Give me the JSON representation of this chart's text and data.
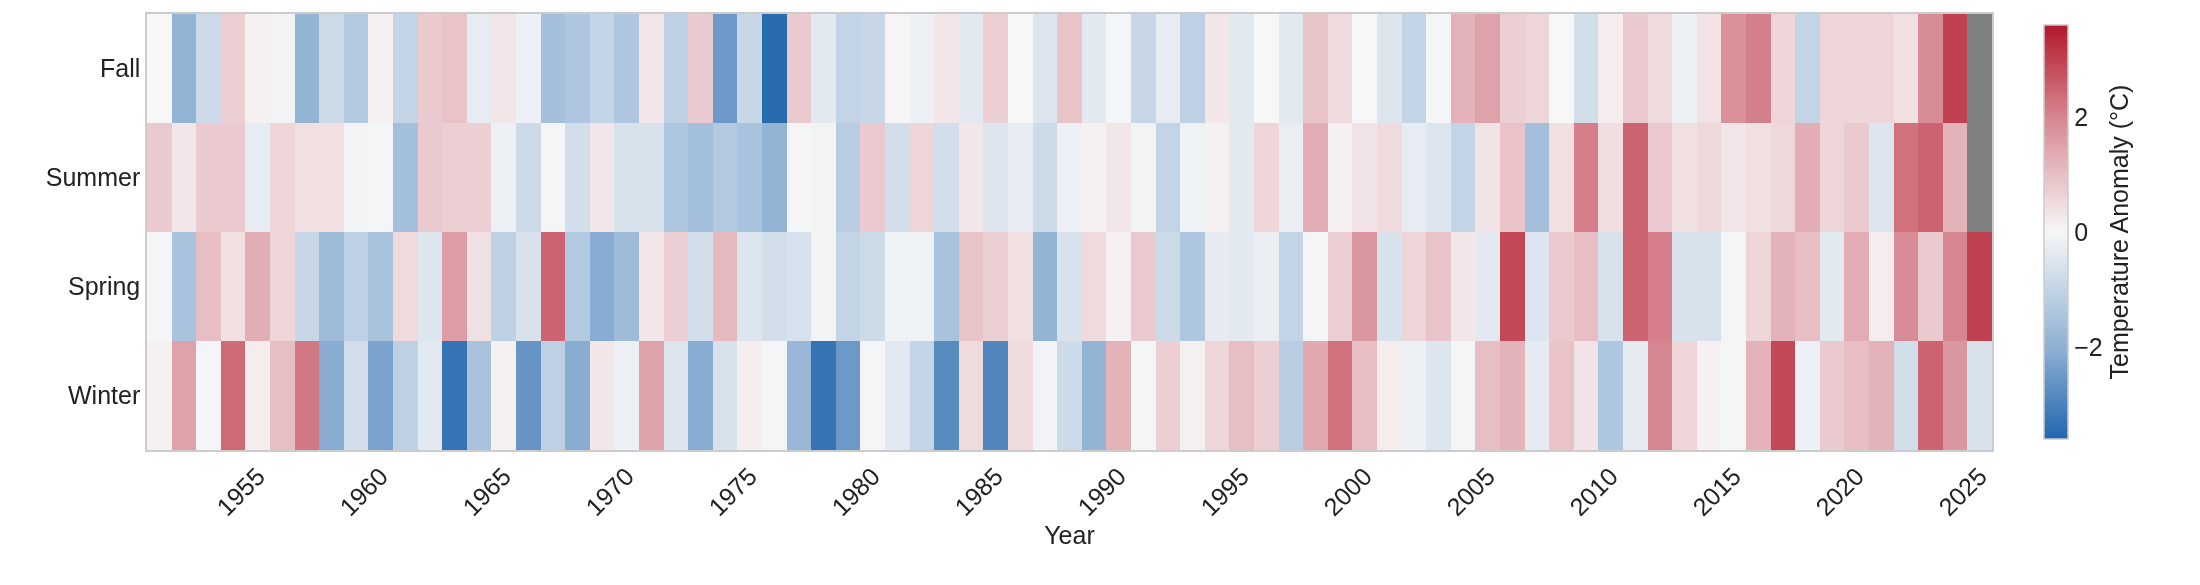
{
  "chart_data": {
    "type": "heatmap",
    "xlabel": "Year",
    "clabel": "Temperature Anomaly (°C)",
    "x": [
      1951,
      1952,
      1953,
      1954,
      1955,
      1956,
      1957,
      1958,
      1959,
      1960,
      1961,
      1962,
      1963,
      1964,
      1965,
      1966,
      1967,
      1968,
      1969,
      1970,
      1971,
      1972,
      1973,
      1974,
      1975,
      1976,
      1977,
      1978,
      1979,
      1980,
      1981,
      1982,
      1983,
      1984,
      1985,
      1986,
      1987,
      1988,
      1989,
      1990,
      1991,
      1992,
      1993,
      1994,
      1995,
      1996,
      1997,
      1998,
      1999,
      2000,
      2001,
      2002,
      2003,
      2004,
      2005,
      2006,
      2007,
      2008,
      2009,
      2010,
      2011,
      2012,
      2013,
      2014,
      2015,
      2016,
      2017,
      2018,
      2019,
      2020,
      2021,
      2022,
      2023,
      2024,
      2025
    ],
    "y_categories": [
      "Fall",
      "Summer",
      "Spring",
      "Winter"
    ],
    "cells": [
      [
        0.0,
        -1.9,
        -0.8,
        0.7,
        0.1,
        -0.1,
        -1.9,
        -0.8,
        -1.3,
        0.1,
        -1.0,
        0.8,
        0.9,
        -0.3,
        0.3,
        -0.2,
        -1.6,
        -1.4,
        -1.0,
        -1.4,
        0.3,
        -1.1,
        0.8,
        -2.5,
        -0.9,
        -3.5,
        0.8,
        -0.4,
        -1.0,
        -0.9,
        0.05,
        -0.2,
        0.3,
        -0.4,
        0.7,
        0.0,
        -0.5,
        0.9,
        -0.4,
        -0.05,
        -0.9,
        -0.3,
        -1.1,
        0.3,
        -0.4,
        0.0,
        -0.4,
        0.9,
        0.5,
        0.0,
        -0.5,
        -1.0,
        -0.05,
        1.2,
        1.5,
        0.7,
        0.6,
        0.0,
        -0.7,
        0.2,
        0.8,
        0.5,
        -0.2,
        0.35,
        1.8,
        2.1,
        0.6,
        -1.0,
        0.6,
        0.6,
        0.6,
        0.4,
        1.9,
        3.0,
        null
      ],
      [
        0.8,
        0.3,
        0.8,
        0.8,
        -0.3,
        0.6,
        0.4,
        0.4,
        -0.1,
        -0.05,
        -1.6,
        0.8,
        0.7,
        0.7,
        -0.2,
        -0.8,
        -0.05,
        -0.7,
        0.3,
        -0.6,
        -0.6,
        -1.4,
        -1.6,
        -1.3,
        -1.5,
        -1.9,
        -0.05,
        -0.1,
        -1.2,
        0.8,
        -0.7,
        0.6,
        -0.7,
        0.3,
        -0.5,
        -0.3,
        -0.8,
        -0.2,
        0.1,
        0.3,
        -0.1,
        -1.0,
        -0.15,
        0.1,
        -0.4,
        0.6,
        -0.25,
        1.3,
        0.1,
        0.35,
        0.5,
        -0.3,
        -0.5,
        -1.0,
        0.35,
        0.9,
        -1.6,
        0.4,
        2.1,
        0.45,
        2.5,
        0.8,
        0.4,
        0.55,
        0.3,
        0.4,
        0.55,
        1.3,
        0.6,
        0.8,
        -0.5,
        2.3,
        2.5,
        1.2,
        null
      ],
      [
        -0.05,
        -1.5,
        1.0,
        0.4,
        1.3,
        0.6,
        -0.9,
        -1.7,
        -1.1,
        -1.5,
        0.5,
        -0.5,
        1.6,
        0.4,
        -1.1,
        -0.6,
        2.5,
        -1.3,
        -2.1,
        -1.7,
        0.3,
        0.7,
        -0.7,
        1.1,
        -0.5,
        -0.7,
        -0.6,
        -0.1,
        -1.0,
        -0.8,
        -0.15,
        -0.15,
        -1.5,
        0.9,
        0.7,
        0.4,
        -1.9,
        -0.6,
        0.5,
        0.1,
        0.8,
        -0.8,
        -1.4,
        -0.35,
        -0.4,
        -0.25,
        -1.0,
        -0.05,
        0.7,
        1.7,
        -0.6,
        0.6,
        0.9,
        0.3,
        -0.4,
        2.9,
        -0.5,
        0.8,
        1.0,
        -0.6,
        2.5,
        2.1,
        -0.6,
        -0.6,
        -0.05,
        0.6,
        1.2,
        1.0,
        -0.4,
        1.3,
        0.2,
        1.9,
        0.8,
        2.0,
        3.0
      ],
      [
        0.1,
        1.5,
        -0.05,
        2.4,
        0.2,
        1.0,
        2.2,
        -2.1,
        -0.7,
        -2.3,
        -1.1,
        -0.4,
        -3.3,
        -1.5,
        0.1,
        -2.6,
        -1.1,
        -2.1,
        0.3,
        -0.2,
        1.5,
        -0.5,
        -2.1,
        -0.6,
        0.2,
        -0.05,
        -1.8,
        -3.3,
        -2.5,
        -0.05,
        -0.4,
        -1.0,
        -2.8,
        0.5,
        -2.9,
        0.5,
        -0.1,
        -0.8,
        -1.9,
        1.2,
        -0.05,
        0.7,
        0.15,
        0.6,
        1.0,
        0.7,
        -1.2,
        1.4,
        2.3,
        1.0,
        0.2,
        -0.2,
        -0.5,
        -0.05,
        1.0,
        1.2,
        -0.35,
        0.9,
        0.35,
        -1.4,
        -0.35,
        2.0,
        0.6,
        0.1,
        -0.05,
        1.2,
        2.9,
        -0.2,
        0.8,
        1.0,
        1.2,
        -0.7,
        2.5,
        1.7,
        -0.6
      ]
    ],
    "xlim": [
      1950.5,
      2025.5
    ],
    "xticks": [
      1955,
      1960,
      1965,
      1970,
      1975,
      1980,
      1985,
      1990,
      1995,
      2000,
      2005,
      2010,
      2015,
      2020,
      2025
    ],
    "clim": [
      -3.6,
      3.6
    ],
    "cticks": [
      {
        "value": -2,
        "label": "−2"
      },
      0,
      2
    ],
    "grid": false
  }
}
